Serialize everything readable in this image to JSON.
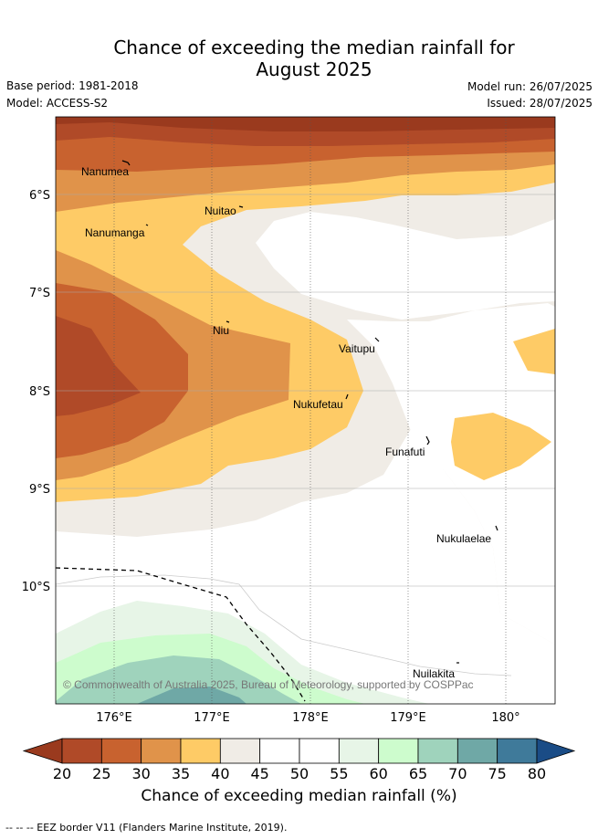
{
  "header": {
    "title_line1": "Chance of exceeding the median rainfall for",
    "title_line2": "August 2025",
    "base_period": "Base period: 1981-2018",
    "model": "Model: ACCESS-S2",
    "model_run": "Model run: 26/07/2025",
    "issued": "Issued: 28/07/2025"
  },
  "map": {
    "lat_labels": [
      "6°S",
      "7°S",
      "8°S",
      "9°S",
      "10°S"
    ],
    "lon_labels": [
      "176°E",
      "177°E",
      "178°E",
      "179°E",
      "180°"
    ],
    "copyright": "© Commonwealth of Australia 2025, Bureau of Meteorology, supported by COSPPac",
    "places": [
      "Nanumea",
      "Nuitao",
      "Nanumanga",
      "Niu",
      "Vaitupu",
      "Nukufetau",
      "Funafuti",
      "Nukulaelae",
      "Nuilakita"
    ]
  },
  "colorbar": {
    "title": "Chance of exceeding median rainfall (%)",
    "ticks": [
      "20",
      "25",
      "30",
      "35",
      "40",
      "45",
      "50",
      "55",
      "60",
      "65",
      "70",
      "75",
      "80"
    ],
    "colors": [
      "#9a3a1e",
      "#b04a28",
      "#c8622f",
      "#e0934a",
      "#fecb66",
      "#f0ece6",
      "#ffffff",
      "#ffffff",
      "#e7f5e7",
      "#cdfccd",
      "#9fd3bc",
      "#6fa8a6",
      "#3f7a9a",
      "#1a4c86"
    ]
  },
  "footer": {
    "eez_note": "-- -- -- EEZ border V11 (Flanders Marine Institute, 2019)."
  }
}
